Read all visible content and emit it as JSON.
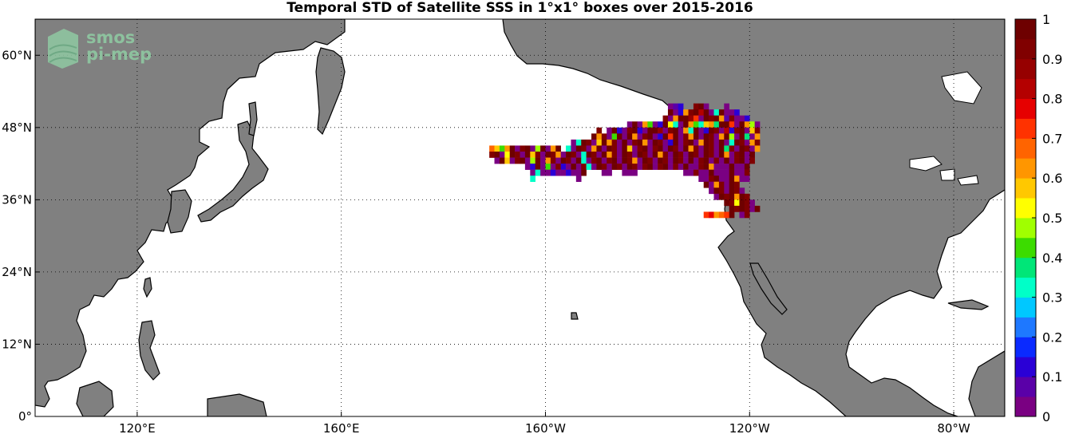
{
  "title": "Temporal STD of Satellite SSS in 1°x1° boxes over 2015-2016",
  "logo": {
    "line1": "smos",
    "line2": "pi-mep"
  },
  "colors": {
    "land": "#808080",
    "ocean": "#ffffff",
    "coast": "#000000",
    "grid": "#000000"
  },
  "map": {
    "lon_range": [
      100,
      290
    ],
    "lat_range": [
      0,
      66
    ],
    "x_ticks": [
      {
        "lon": 120,
        "label": "120°E"
      },
      {
        "lon": 160,
        "label": "160°E"
      },
      {
        "lon": 200,
        "label": "160°W"
      },
      {
        "lon": 240,
        "label": "120°W"
      },
      {
        "lon": 280,
        "label": "80°W"
      }
    ],
    "y_ticks": [
      {
        "lat": 0,
        "label": "0°"
      },
      {
        "lat": 12,
        "label": "12°N"
      },
      {
        "lat": 24,
        "label": "24°N"
      },
      {
        "lat": 36,
        "label": "36°N"
      },
      {
        "lat": 48,
        "label": "48°N"
      },
      {
        "lat": 60,
        "label": "60°N"
      }
    ],
    "grid": "dotted"
  },
  "colorbar": {
    "range": [
      0,
      1
    ],
    "colors": [
      "#7a0082",
      "#5a00a8",
      "#2a00d6",
      "#0a2aff",
      "#1e78ff",
      "#00c8ff",
      "#00ffc8",
      "#00e678",
      "#3cdc00",
      "#a0ff00",
      "#ffff00",
      "#ffc800",
      "#ff9600",
      "#ff6400",
      "#ff3200",
      "#e60000",
      "#b40000",
      "#960000",
      "#800000",
      "#6e0000"
    ],
    "ticks": [
      "0",
      "0.1",
      "0.2",
      "0.3",
      "0.4",
      "0.5",
      "0.6",
      "0.7",
      "0.8",
      "0.9",
      "1"
    ]
  },
  "chart_data": {
    "type": "heatmap",
    "title": "Temporal STD of Satellite SSS in 1°x1° boxes over 2015-2016",
    "xlabel": "",
    "ylabel": "",
    "xlim": [
      100,
      290
    ],
    "ylim": [
      0,
      66
    ],
    "zlim": [
      0,
      1
    ],
    "units": "1°x1° boxes, lon in degrees east (0-360), lat in degrees north",
    "rows": [
      {
        "lat": 51.5,
        "lon_start": 224,
        "values": [
          0.0,
          0.05,
          0.1,
          null,
          null,
          0.9,
          0.95,
          0.0,
          null,
          null,
          null,
          0.0
        ]
      },
      {
        "lat": 50.5,
        "lon_start": 224,
        "values": [
          0.95,
          0.0,
          0.1,
          0.6,
          0.9,
          1.0,
          0.8,
          0.95,
          0.0,
          0.3,
          0.95,
          0.0,
          0.0,
          0.1
        ]
      },
      {
        "lat": 49.5,
        "lon_start": 223,
        "values": [
          0.9,
          0.0,
          0.6,
          0.95,
          1.0,
          0.85,
          0.7,
          0.0,
          0.95,
          0.9,
          1.0,
          0.6,
          0.05,
          0.9,
          0.0,
          0.0,
          0.1
        ]
      },
      {
        "lat": 48.5,
        "lon_start": 216,
        "values": [
          0.0,
          0.95,
          0.0,
          0.6,
          0.4,
          0.0,
          0.1,
          0.95,
          0.5,
          0.3,
          0.0,
          0.95,
          0.6,
          0.4,
          0.3,
          0.55,
          0.6,
          0.35,
          1.0,
          0.95,
          0.7,
          0.0,
          0.95,
          0.6,
          0.45,
          0.0
        ]
      },
      {
        "lat": 47.5,
        "lon_start": 210,
        "values": [
          0.9,
          null,
          0.0,
          0.95,
          0.1,
          0.0,
          0.9,
          0.95,
          0.1,
          0.0,
          0.95,
          1.0,
          0.85,
          0.0,
          0.9,
          0.95,
          0.0,
          0.6,
          0.3,
          0.95,
          0.0,
          0.1,
          0.95,
          0.9,
          0.0,
          0.8,
          0.1,
          0.9,
          0.95,
          0.0,
          0.55,
          0.9
        ]
      },
      {
        "lat": 46.5,
        "lon_start": 209,
        "values": [
          0.95,
          0.6,
          0.9,
          0.0,
          0.4,
          0.95,
          0.0,
          0.95,
          0.6,
          0.0,
          0.9,
          0.95,
          0.0,
          0.1,
          0.95,
          0.7,
          0.95,
          0.0,
          0.9,
          0.6,
          0.95,
          0.0,
          0.95,
          0.9,
          0.0,
          0.6,
          0.95,
          0.45,
          0.0,
          0.95,
          0.35,
          0.0,
          0.6
        ]
      },
      {
        "lat": 45.5,
        "lon_start": 205,
        "values": [
          0.0,
          0.3,
          0.95,
          0.9,
          0.0,
          0.55,
          0.95,
          0.6,
          0.9,
          0.0,
          0.95,
          0.0,
          0.9,
          0.95,
          0.6,
          0.0,
          0.95,
          0.9,
          0.0,
          0.1,
          0.95,
          0.0,
          0.9,
          0.95,
          0.0,
          0.6,
          0.95,
          0.9,
          0.0,
          0.95,
          0.0,
          0.3,
          0.95,
          0.9,
          0.0,
          0.6,
          0.9
        ]
      },
      {
        "lat": 44.5,
        "lon_start": 189,
        "values": [
          0.65,
          0.55,
          0.4,
          0.6,
          0.95,
          0.0,
          0.9,
          0.95,
          0.0,
          0.45,
          0.95,
          0.0,
          0.6,
          0.95,
          null,
          0.3,
          0.0,
          0.95,
          0.9,
          0.0,
          0.6,
          0.95,
          0.0,
          0.95,
          0.9,
          0.0,
          0.95,
          0.55,
          0.0,
          0.9,
          0.95,
          0.0,
          0.9,
          0.95,
          0.0,
          0.95,
          0.9,
          0.0,
          0.95,
          0.6,
          0.9,
          0.0,
          0.95,
          0.9,
          0.0,
          0.95,
          0.35,
          0.9,
          0.0,
          0.95,
          0.9,
          0.0,
          0.6
        ]
      },
      {
        "lat": 43.5,
        "lon_start": 189,
        "values": [
          0.9,
          0.95,
          0.0,
          0.5,
          0.95,
          0.9,
          0.0,
          0.95,
          0.55,
          0.9,
          0.0,
          0.95,
          0.9,
          0.6,
          0.0,
          0.95,
          0.9,
          0.0,
          0.3,
          0.95,
          0.9,
          0.0,
          0.95,
          0.6,
          0.9,
          0.0,
          0.95,
          0.9,
          0.0,
          0.95,
          0.9,
          0.0,
          0.95,
          0.6,
          0.9,
          0.0,
          0.95,
          0.9,
          0.0,
          0.95,
          0.9,
          0.0,
          0.95,
          0.9,
          0.0,
          0.95,
          0.6,
          0.0,
          0.9,
          0.95,
          0.0,
          0.95
        ]
      },
      {
        "lat": 42.5,
        "lon_start": 190,
        "values": [
          0.0,
          0.95,
          0.55,
          0.0,
          0.9,
          0.95,
          0.0,
          0.45,
          0.95,
          0.0,
          0.6,
          0.9,
          0.0,
          0.95,
          0.9,
          0.0,
          0.95,
          0.3,
          0.0,
          0.9,
          0.95,
          0.0,
          0.9,
          0.95,
          0.0,
          0.95,
          0.9,
          0.6,
          0.0,
          0.95,
          0.9,
          0.0,
          0.95,
          0.9,
          0.0,
          0.95,
          0.9,
          0.0,
          0.95,
          0.0,
          0.9,
          0.95,
          0.0,
          0.9,
          0.0,
          0.95,
          0.0,
          0.9,
          0.95,
          0.0,
          0.9
        ]
      },
      {
        "lat": 41.5,
        "lon_start": 196,
        "values": [
          0.0,
          0.1,
          0.95,
          0.0,
          0.4,
          0.0,
          0.9,
          0.1,
          0.0,
          0.95,
          0.0,
          0.9,
          0.3,
          0.0,
          0.95,
          0.9,
          0.0,
          0.95,
          0.9,
          0.0,
          0.95,
          0.9,
          0.0,
          0.9,
          0.95,
          0.0,
          0.9,
          0.95,
          0.0,
          0.9,
          0.0,
          0.95,
          0.0,
          0.0,
          0.9,
          0.95,
          0.6,
          0.0,
          0.0,
          0.0,
          0.95,
          0.0,
          0.0,
          0.95
        ]
      },
      {
        "lat": 40.5,
        "lon_start": 197,
        "values": [
          0.0,
          0.3,
          0.0,
          0.0,
          0.1,
          0.0,
          0.0,
          0.1,
          0.0,
          0.0,
          0.95,
          null,
          null,
          null,
          0.0,
          0.0,
          null,
          null,
          0.0,
          0.0,
          0.0,
          null,
          null,
          null,
          null,
          null,
          null,
          null,
          null,
          null,
          0.0,
          0.0,
          0.9,
          0.0,
          0.0,
          0.95,
          0.0,
          0.0,
          0.0,
          0.95,
          0.0,
          0.0,
          0.9
        ]
      },
      {
        "lat": 39.5,
        "lon_start": 197,
        "values": [
          0.3,
          null,
          null,
          null,
          null,
          null,
          null,
          null,
          null,
          0.0,
          null,
          null,
          null,
          null,
          null,
          null,
          null,
          null,
          null,
          null,
          null,
          null,
          null,
          null,
          null,
          null,
          null,
          null,
          null,
          null,
          null,
          null,
          null,
          0.0,
          0.0,
          0.9,
          0.95,
          0.0,
          0.0,
          0.95,
          0.6,
          0.0,
          0.0
        ]
      },
      {
        "lat": 38.5,
        "lon_start": 231,
        "values": [
          0.95,
          0.0,
          0.6,
          0.9,
          0.0,
          0.95,
          0.9
        ]
      },
      {
        "lat": 37.5,
        "lon_start": 232,
        "values": [
          0.0,
          0.95,
          0.9,
          0.0,
          0.95,
          0.9,
          0.0
        ]
      },
      {
        "lat": 36.5,
        "lon_start": 233,
        "values": [
          0.0,
          0.95,
          0.9,
          0.95,
          0.6,
          0.95,
          0.9
        ]
      },
      {
        "lat": 35.5,
        "lon_start": 235,
        "values": [
          0.95,
          0.9,
          0.5,
          0.95,
          0.9,
          0.0
        ]
      },
      {
        "lat": 34.5,
        "lon_start": 236,
        "values": [
          0.95,
          0.9,
          0.95,
          0.9,
          0.0,
          0.95
        ]
      },
      {
        "lat": 33.5,
        "lon_start": 231,
        "values": [
          0.7,
          0.75,
          0.6,
          0.65,
          0.7,
          0.95,
          null,
          0.0,
          0.9
        ]
      }
    ]
  }
}
